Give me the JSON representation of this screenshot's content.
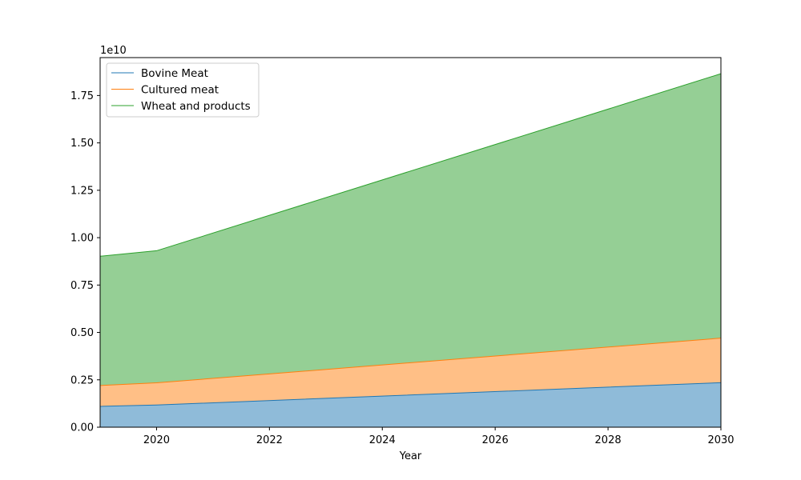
{
  "chart_data": {
    "type": "area",
    "stacked": true,
    "xlabel": "Year",
    "ylabel": "",
    "y_scale_label": "1e10",
    "xlim": [
      2019,
      2030
    ],
    "ylim": [
      0,
      19500000000.0
    ],
    "x_ticks": [
      2020,
      2022,
      2024,
      2026,
      2028,
      2030
    ],
    "y_ticks": [
      0,
      2500000000.0,
      5000000000.0,
      7500000000.0,
      10000000000.0,
      12500000000.0,
      15000000000.0,
      17500000000.0
    ],
    "y_tick_labels": [
      "0.00",
      "0.25",
      "0.50",
      "0.75",
      "1.00",
      "1.25",
      "1.50",
      "1.75"
    ],
    "x": [
      2019,
      2020,
      2030
    ],
    "series": [
      {
        "name": "Bovine Meat",
        "values": [
          1100000000.0,
          1170000000.0,
          2350000000.0
        ],
        "color": "#1f77b4"
      },
      {
        "name": "Cultured meat",
        "values": [
          1100000000.0,
          1170000000.0,
          2350000000.0
        ],
        "color": "#ff7f0e"
      },
      {
        "name": "Wheat and products",
        "values": [
          6820000000.0,
          6970000000.0,
          13950000000.0
        ],
        "color": "#2ca02c"
      }
    ],
    "legend_position": "top-left",
    "grid": false
  }
}
